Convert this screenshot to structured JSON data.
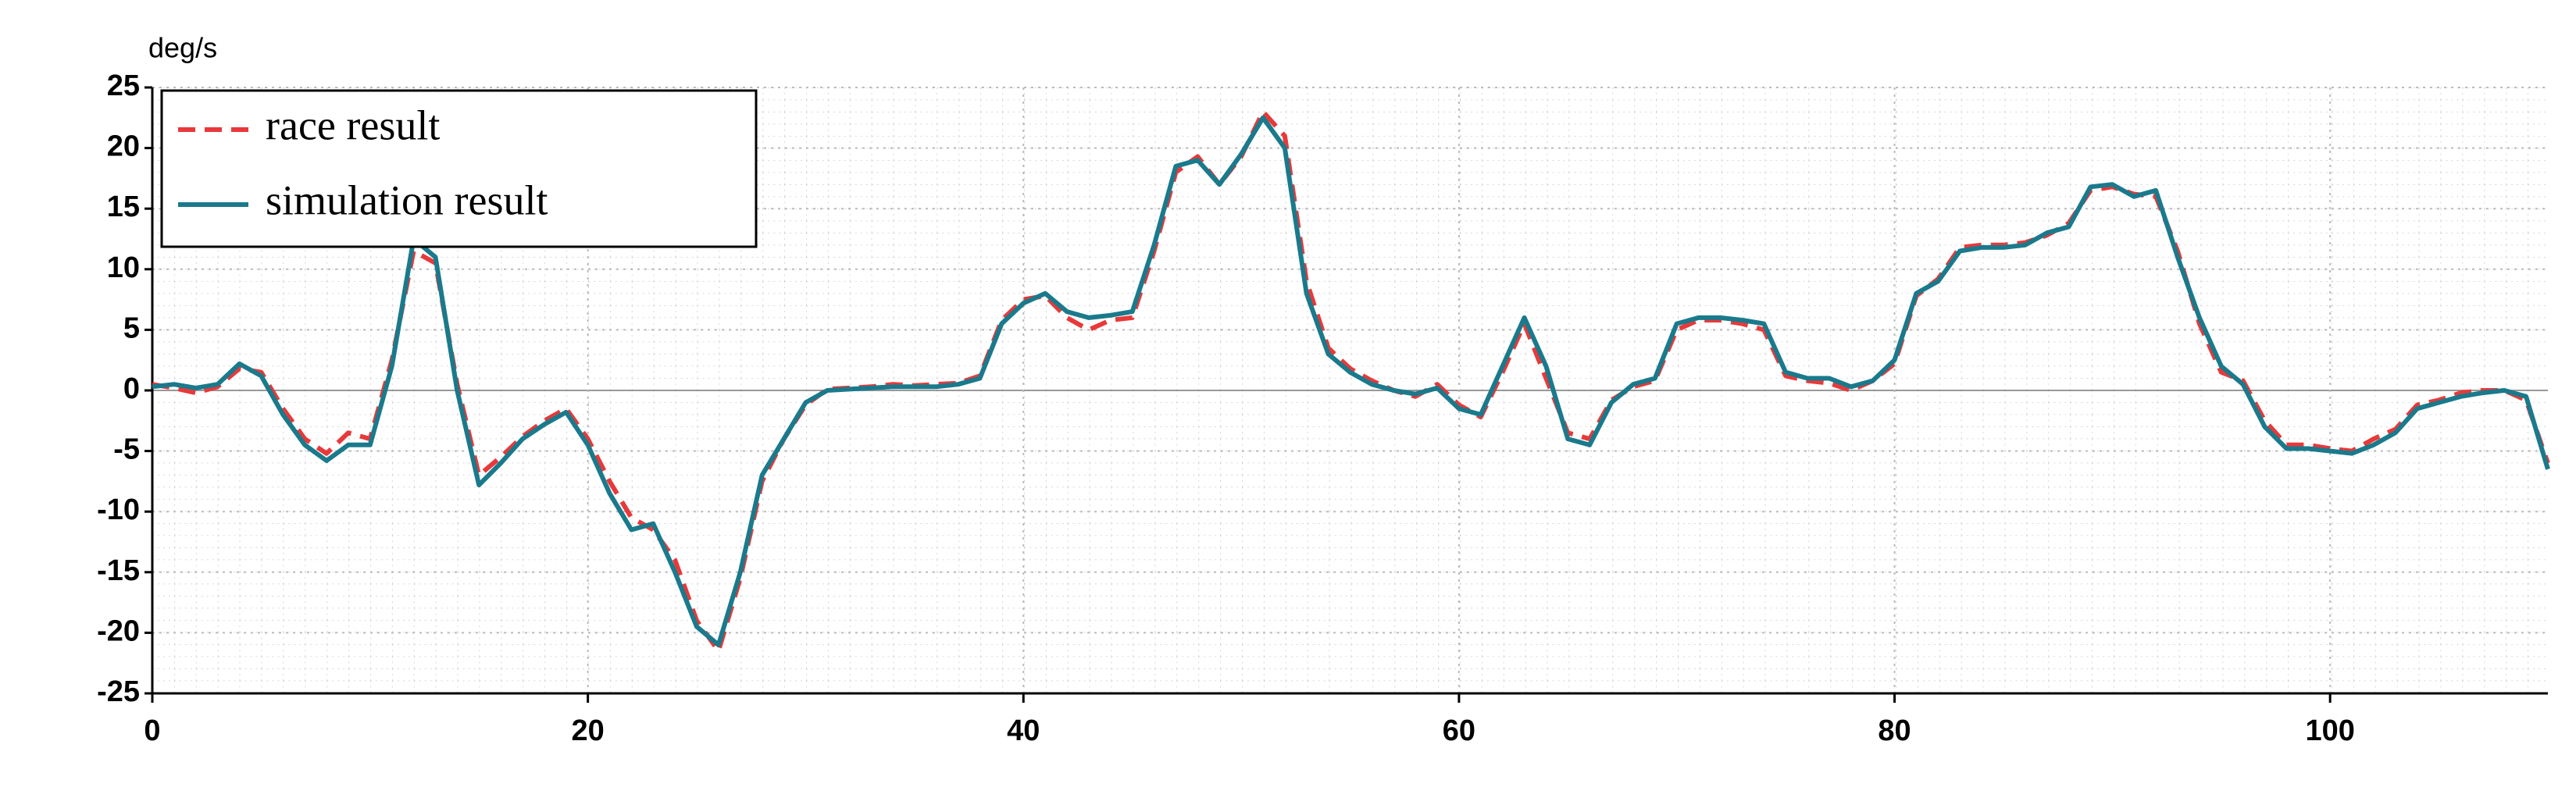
{
  "chart_data": {
    "type": "line",
    "ylabel": "deg/s",
    "xlim": [
      0,
      110
    ],
    "xticks": [
      0,
      20,
      40,
      60,
      80,
      100
    ],
    "ylim": [
      -25,
      25
    ],
    "yticks": [
      -25,
      -20,
      -15,
      -10,
      -5,
      0,
      5,
      10,
      15,
      20,
      25
    ],
    "grid": true,
    "legend": "upper left",
    "x": [
      0,
      1,
      2,
      3,
      4,
      5,
      6,
      7,
      8,
      9,
      10,
      11,
      12,
      13,
      14,
      15,
      16,
      17,
      18,
      19,
      20,
      21,
      22,
      23,
      24,
      25,
      26,
      27,
      28,
      29,
      30,
      31,
      32,
      33,
      34,
      35,
      36,
      37,
      38,
      39,
      40,
      41,
      42,
      43,
      44,
      45,
      46,
      47,
      48,
      49,
      50,
      51,
      52,
      53,
      54,
      55,
      56,
      57,
      58,
      59,
      60,
      61,
      62,
      63,
      64,
      65,
      66,
      67,
      68,
      69,
      70,
      71,
      72,
      73,
      74,
      75,
      76,
      77,
      78,
      79,
      80,
      81,
      82,
      83,
      84,
      85,
      86,
      87,
      88,
      89,
      90,
      91,
      92,
      93,
      94,
      95,
      96,
      97,
      98,
      99,
      100,
      101,
      102,
      103,
      104,
      105,
      106,
      107,
      108,
      109,
      110
    ],
    "series": [
      {
        "name": "race result",
        "color": "#e8393a",
        "style": "dashed",
        "values": [
          0.5,
          0.2,
          -0.2,
          0.3,
          1.8,
          1.5,
          -1.5,
          -4,
          -5.2,
          -3.5,
          -4,
          2.5,
          11.5,
          10.5,
          0.5,
          -7,
          -5.5,
          -3.8,
          -2.5,
          -1.5,
          -4,
          -7.5,
          -10.5,
          -11.5,
          -14,
          -19,
          -21.5,
          -15.5,
          -7.5,
          -4,
          -1.2,
          0.1,
          0.2,
          0.3,
          0.5,
          0.4,
          0.5,
          0.6,
          1.2,
          5.8,
          7.5,
          7.8,
          6,
          5,
          5.8,
          6,
          11.5,
          18,
          19.3,
          17,
          19.3,
          23,
          21,
          9,
          3.5,
          1.8,
          0.8,
          0,
          -0.5,
          0.5,
          -1.2,
          -2.2,
          1.5,
          5.5,
          1,
          -3.5,
          -4,
          -0.8,
          0.3,
          0.8,
          5,
          5.8,
          5.8,
          5.5,
          5,
          1.2,
          0.8,
          0.6,
          0,
          0.8,
          2.2,
          7.8,
          9.2,
          11.8,
          12,
          12,
          12.2,
          12.8,
          13.8,
          16.5,
          16.8,
          16.2,
          16,
          11.5,
          5.5,
          1.5,
          0.8,
          -2.5,
          -4.5,
          -4.5,
          -4.8,
          -5,
          -4,
          -3.2,
          -1.2,
          -0.8,
          -0.2,
          0,
          0,
          -0.8,
          -6
        ]
      },
      {
        "name": "simulation result",
        "color": "#1a7a8c",
        "style": "solid",
        "values": [
          0.3,
          0.5,
          0.2,
          0.5,
          2.2,
          1.2,
          -2,
          -4.5,
          -5.8,
          -4.5,
          -4.5,
          2,
          12.5,
          11,
          0,
          -7.8,
          -6,
          -4,
          -2.8,
          -1.8,
          -4.5,
          -8.5,
          -11.5,
          -11,
          -15,
          -19.5,
          -21,
          -15,
          -7,
          -4,
          -1,
          0,
          0.1,
          0.2,
          0.3,
          0.3,
          0.3,
          0.5,
          1,
          5.5,
          7.2,
          8,
          6.5,
          6,
          6.2,
          6.5,
          12,
          18.5,
          19,
          17,
          19.5,
          22.5,
          20,
          8,
          3,
          1.5,
          0.5,
          0,
          -0.3,
          0.2,
          -1.5,
          -2,
          2,
          6,
          2,
          -4,
          -4.5,
          -1,
          0.5,
          1,
          5.5,
          6,
          6,
          5.8,
          5.5,
          1.5,
          1,
          1,
          0.3,
          0.8,
          2.5,
          8,
          9,
          11.5,
          11.8,
          11.8,
          12,
          13,
          13.5,
          16.8,
          17,
          16,
          16.5,
          11,
          6,
          2,
          0.5,
          -3,
          -4.8,
          -4.8,
          -5,
          -5.2,
          -4.5,
          -3.5,
          -1.5,
          -1,
          -0.5,
          -0.2,
          0,
          -0.5,
          -6.5
        ]
      }
    ]
  }
}
